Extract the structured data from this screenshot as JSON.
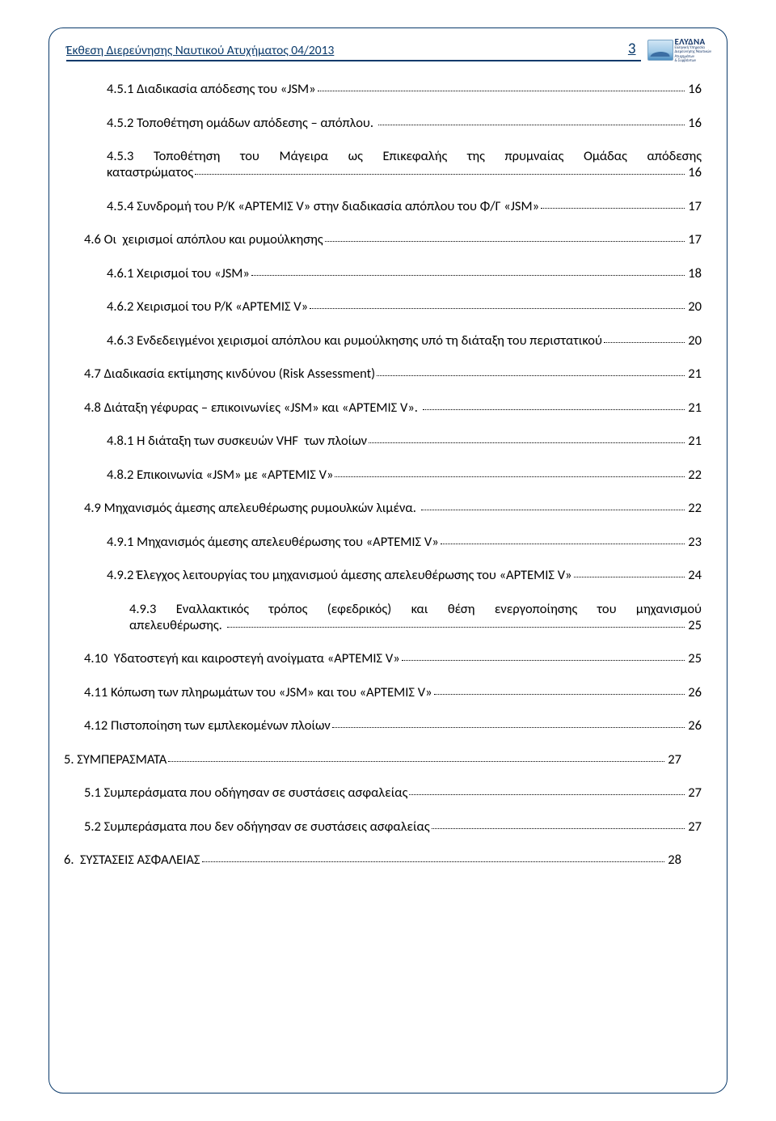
{
  "header": {
    "title": "Έκθεση Διερεύνησης Ναυτικού Ατυχήματος 04/2013",
    "page_number": "3",
    "logo": {
      "brand": "ΕΛΥΔΝΑ",
      "sub1": "Ελληνική Υπηρεσία",
      "sub2": "Διερεύνησης Ναυτικών",
      "sub3": "Ατυχημάτων",
      "sub4": "& Συμβάντων"
    }
  },
  "colors": {
    "accent": "#0a3a6b",
    "text": "#000000",
    "bg": "#ffffff"
  },
  "toc": [
    {
      "indent": 1,
      "label": "4.5.1 Διαδικασία απόδεσης του «JSM»",
      "page": "16"
    },
    {
      "indent": 1,
      "label": "4.5.2 Τοποθέτηση ομάδων απόδεσης – απόπλου. ",
      "page": "16"
    },
    {
      "indent": 1,
      "label": "4.5.3  Τοποθέτηση  του  Μάγειρα  ως  Επικεφαλής  της  πρυμναίας  Ομάδας  απόδεσης καταστρώματος",
      "page": "16",
      "justify": true
    },
    {
      "indent": 1,
      "label": "4.5.4 Συνδρομή του Ρ/Κ «ΑΡΤΕΜΙΣ V» στην διαδικασία απόπλου του Φ/Γ «JSM»",
      "page": "17"
    },
    {
      "indent": 0,
      "label": "4.6 Οι  χειρισμοί απόπλου και ρυμούλκησης",
      "page": "17"
    },
    {
      "indent": 1,
      "label": "4.6.1 Χειρισμοί του «JSM»",
      "page": "18"
    },
    {
      "indent": 1,
      "label": "4.6.2 Χειρισμοί του Ρ/Κ «ΑΡΤΕΜΙΣ V»",
      "page": "20"
    },
    {
      "indent": 1,
      "label": "4.6.3 Ενδεδειγμένοι χειρισμοί απόπλου και ρυμούλκησης υπό τη διάταξη του περιστατικού",
      "page": "20"
    },
    {
      "indent": 0,
      "label": "4.7 Διαδικασία εκτίμησης κινδύνου (Risk Assessment)",
      "page": "21"
    },
    {
      "indent": 0,
      "label": "4.8 Διάταξη γέφυρας – επικοινωνίες «JSM» και «ΑΡΤΕΜΙΣ V». ",
      "page": "21"
    },
    {
      "indent": 1,
      "label": "4.8.1 Η διάταξη των συσκευών VHF  των πλοίων",
      "page": "21"
    },
    {
      "indent": 1,
      "label": "4.8.2 Επικοινωνία «JSM» με «ΑΡΤΕΜΙΣ V»",
      "page": "22"
    },
    {
      "indent": 0,
      "label": "4.9 Μηχανισμός άμεσης απελευθέρωσης ρυμουλκών λιμένα. ",
      "page": "22"
    },
    {
      "indent": 1,
      "label": "4.9.1 Μηχανισμός άμεσης απελευθέρωσης του «ΑΡΤΕΜΙΣ V»",
      "page": "23"
    },
    {
      "indent": 1,
      "label": "4.9.2 Έλεγχος λειτουργίας του μηχανισμού άμεσης απελευθέρωσης του «ΑΡΤΕΜΙΣ V»",
      "page": "24"
    },
    {
      "indent": 1,
      "multi": true,
      "line1": "4.9.3    Εναλλακτικός   τρόπος   (εφεδρικός)   και   θέση   ενεργοποίησης   του   μηχανισμού",
      "line2_label": "απελευθέρωσης. ",
      "page": "25"
    },
    {
      "indent": 0,
      "label": "4.10  Υδατοστεγή και καιροστεγή ανοίγματα «ΑΡΤΕΜΙΣ V»",
      "page": "25"
    },
    {
      "indent": 0,
      "label": "4.11 Κόπωση των πληρωμάτων του «JSM» και του «ΑΡΤΕΜΙΣ V»",
      "page": "26"
    },
    {
      "indent": 0,
      "label": "4.12 Πιστοποίηση των εμπλεκομένων πλοίων",
      "page": "26"
    },
    {
      "indent": -1,
      "label": "5. ΣΥΜΠΕΡΑΣΜΑΤΑ",
      "page": "27"
    },
    {
      "indent": 0,
      "label": "5.1 Συμπεράσματα που οδήγησαν σε συστάσεις ασφαλείας",
      "page": "27"
    },
    {
      "indent": 0,
      "label": "5.2 Συμπεράσματα που δεν οδήγησαν σε συστάσεις ασφαλείας",
      "page": "27"
    },
    {
      "indent": -1,
      "label": "6.  ΣΥΣΤΑΣΕΙΣ ΑΣΦΑΛΕΙΑΣ",
      "page": "28"
    }
  ]
}
